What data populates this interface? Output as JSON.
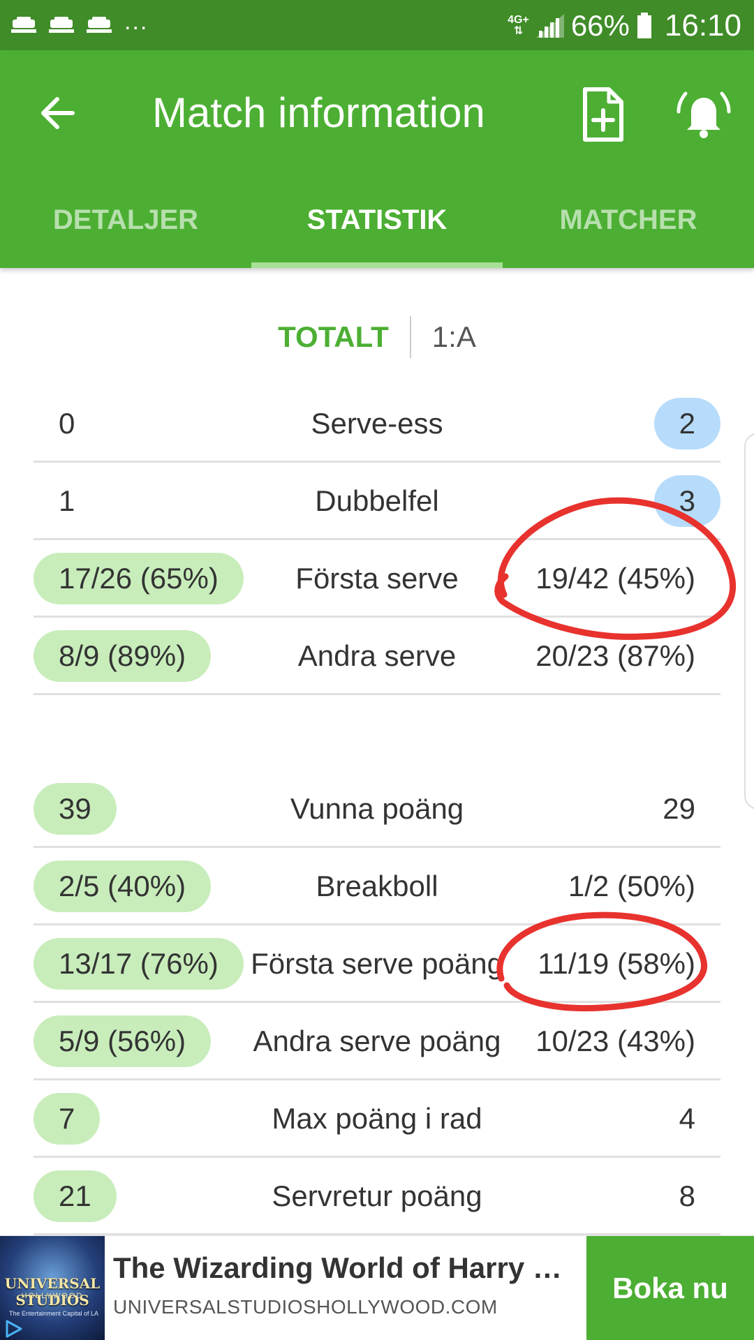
{
  "status_bar": {
    "network": "4G+",
    "battery_percent": "66%",
    "time": "16:10",
    "overflow": "..."
  },
  "app_bar": {
    "title": "Match information",
    "back_icon": "arrow-left-icon",
    "actions": [
      "document-add-icon",
      "bell-alert-icon"
    ]
  },
  "tabs": [
    {
      "label": "DETALJER",
      "active": false
    },
    {
      "label": "STATISTIK",
      "active": true
    },
    {
      "label": "MATCHER",
      "active": false
    }
  ],
  "period_selector": {
    "options": [
      "TOTALT",
      "1:A"
    ],
    "selected": "TOTALT"
  },
  "stats": {
    "serve": [
      {
        "left": "0",
        "label": "Serve-ess",
        "right": "2"
      },
      {
        "left": "1",
        "label": "Dubbelfel",
        "right": "3"
      },
      {
        "left": "17/26 (65%)",
        "label": "Första serve",
        "right": "19/42 (45%)"
      },
      {
        "left": "8/9 (89%)",
        "label": "Andra serve",
        "right": "20/23 (87%)"
      }
    ],
    "points": [
      {
        "left": "39",
        "label": "Vunna poäng",
        "right": "29"
      },
      {
        "left": "2/5 (40%)",
        "label": "Breakboll",
        "right": "1/2 (50%)"
      },
      {
        "left": "13/17 (76%)",
        "label": "Första serve poäng",
        "right": "11/19 (58%)"
      },
      {
        "left": "5/9 (56%)",
        "label": "Andra serve poäng",
        "right": "10/23 (43%)"
      },
      {
        "left": "7",
        "label": "Max poäng i rad",
        "right": "4"
      },
      {
        "left": "21",
        "label": "Servretur poäng",
        "right": "8"
      }
    ]
  },
  "colors": {
    "status_bar": "#3f8c28",
    "app_bar": "#4caf33",
    "highlight_green": "#c8edbb",
    "highlight_blue": "#b7dcfb",
    "annotation_red": "#e8322e"
  },
  "ad": {
    "logo_text": "UNIVERSAL STUDIOS",
    "logo_subtext": "HOLLYWOOD",
    "logo_tagline": "The Entertainment Capital of LA",
    "title": "The Wizarding World of Harry Potter",
    "url": "UNIVERSALSTUDIOSHOLLYWOOD.COM",
    "cta": "Boka nu"
  }
}
